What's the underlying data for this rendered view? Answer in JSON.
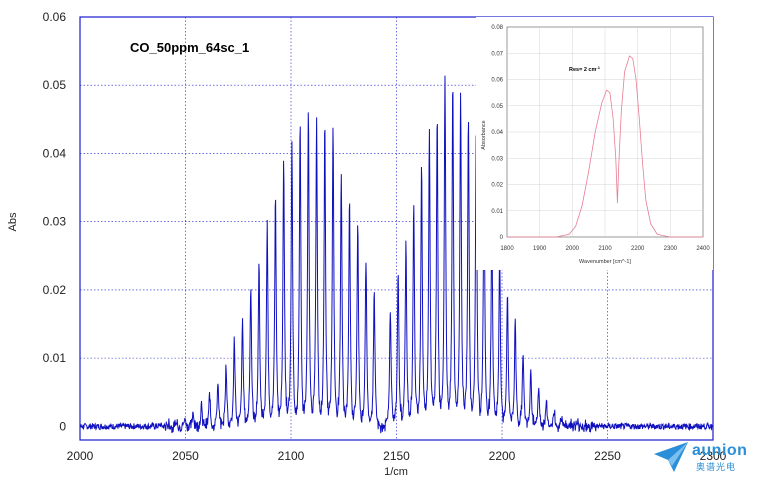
{
  "chart_data": [
    {
      "type": "line",
      "title": "CO_50ppm_64sc_1",
      "xlabel": "1/cm",
      "ylabel": "Abs",
      "xlim": [
        2000,
        2300
      ],
      "ylim": [
        -0.002,
        0.06
      ],
      "x_ticks": [
        "2000",
        "2050",
        "2100",
        "2150",
        "2200",
        "2250",
        "2300"
      ],
      "y_ticks": [
        "0",
        "0.01",
        "0.02",
        "0.03",
        "0.04",
        "0.05",
        "0.06"
      ],
      "grid": true,
      "series_color": "#1010c0",
      "r_branch": {
        "first_line": 2147.08,
        "spacing": 3.7,
        "count": 28,
        "center": 2176,
        "width": 28,
        "peak": 0.053
      },
      "p_branch": {
        "first_line": 2139.43,
        "spacing": 3.9,
        "count": 34,
        "center": 2110,
        "width": 32,
        "peak": 0.049
      }
    },
    {
      "type": "line",
      "xlabel": "Wavenumber [cm^-1]",
      "ylabel": "Absorbance",
      "xlim": [
        1800,
        2400
      ],
      "ylim": [
        0,
        0.08
      ],
      "x_ticks": [
        "1800",
        "1900",
        "2000",
        "2100",
        "2200",
        "2300",
        "2400"
      ],
      "y_ticks": [
        "0",
        "0.01",
        "0.02",
        "0.03",
        "0.04",
        "0.05",
        "0.06",
        "0.07",
        "0.08"
      ],
      "annotation": "Res= 2 cm",
      "annotation_sup": "-1",
      "series_color": "#e87d94",
      "points": [
        [
          1800,
          0.0
        ],
        [
          1950,
          0.0
        ],
        [
          1990,
          0.001
        ],
        [
          2010,
          0.004
        ],
        [
          2030,
          0.012
        ],
        [
          2050,
          0.025
        ],
        [
          2070,
          0.04
        ],
        [
          2090,
          0.051
        ],
        [
          2105,
          0.056
        ],
        [
          2115,
          0.055
        ],
        [
          2125,
          0.045
        ],
        [
          2133,
          0.03
        ],
        [
          2138,
          0.013
        ],
        [
          2143,
          0.03
        ],
        [
          2150,
          0.048
        ],
        [
          2160,
          0.063
        ],
        [
          2175,
          0.069
        ],
        [
          2185,
          0.068
        ],
        [
          2195,
          0.06
        ],
        [
          2205,
          0.045
        ],
        [
          2215,
          0.028
        ],
        [
          2225,
          0.014
        ],
        [
          2240,
          0.005
        ],
        [
          2260,
          0.001
        ],
        [
          2300,
          0.0
        ],
        [
          2400,
          0.0
        ]
      ]
    }
  ],
  "logo": {
    "brand": "aunion",
    "sub": "奥谱光电",
    "color": "#2a8fd8"
  }
}
